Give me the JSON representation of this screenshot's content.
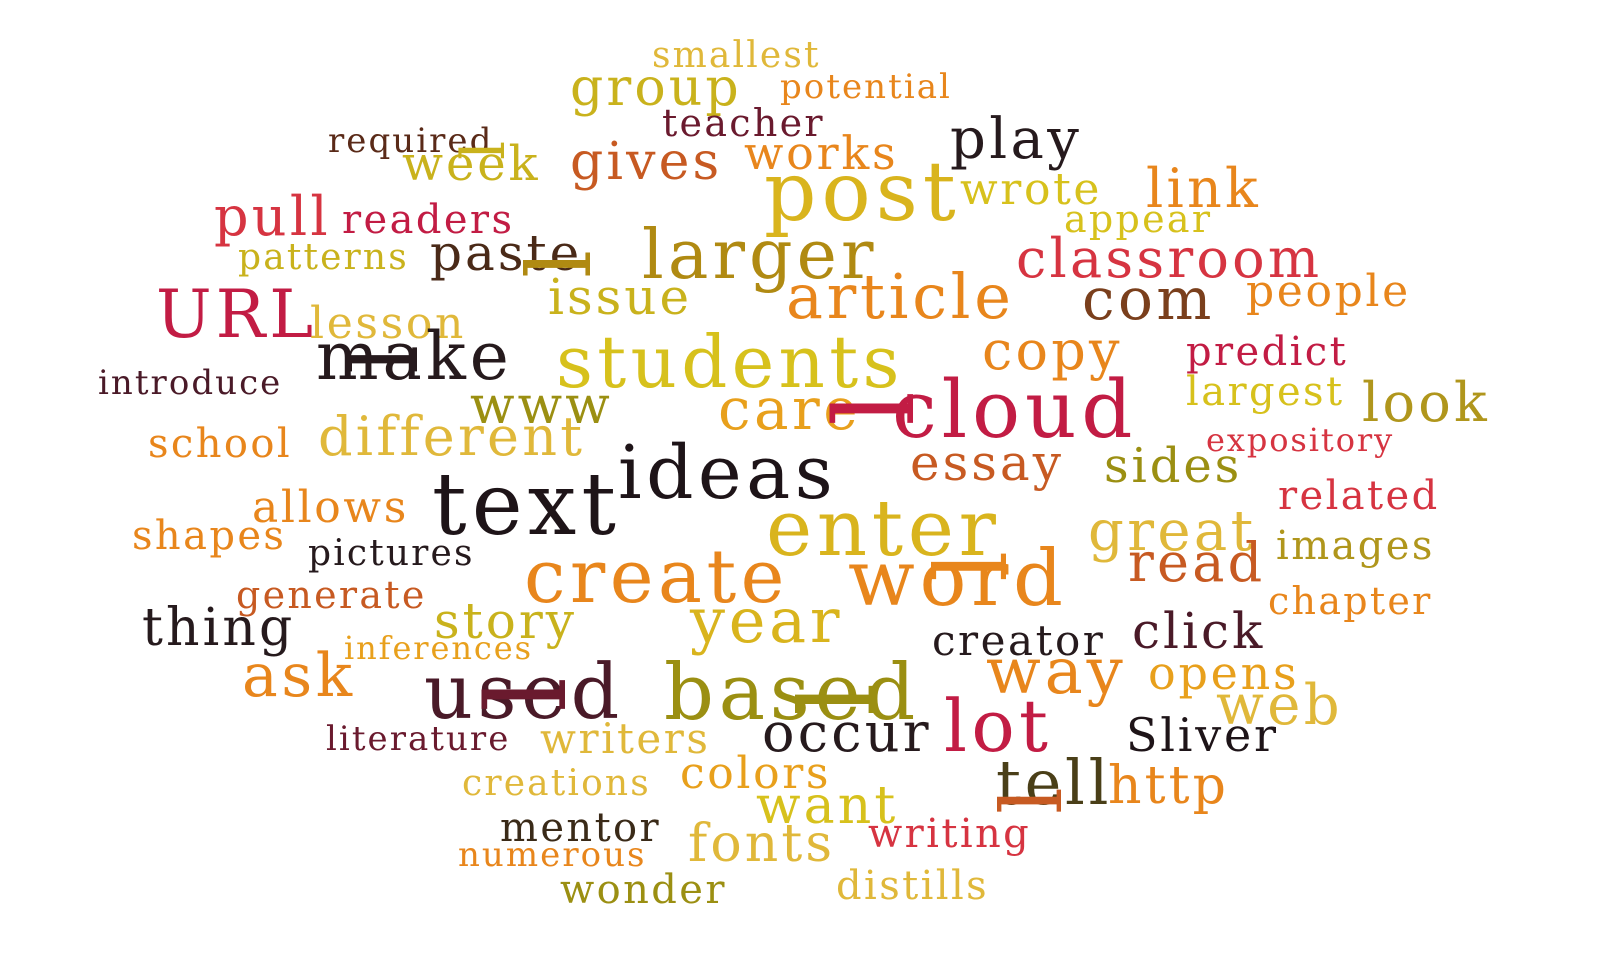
{
  "cloud": {
    "palette": {
      "gold": "#d9a41d",
      "olive": "#9b8f12",
      "yellow": "#d7c11c",
      "orange": "#e8861c",
      "rust": "#c75a22",
      "red": "#d63441",
      "crimson": "#c21c44",
      "maroon": "#6a1a2e",
      "brown": "#7a3f1c",
      "dark": "#261a1d",
      "darkolive": "#4a3f18"
    },
    "words": [
      {
        "text": "smallest",
        "color": "#e0b83a"
      },
      {
        "text": "group",
        "color": "#c9b21c"
      },
      {
        "text": "potential",
        "color": "#e8861c"
      },
      {
        "text": "teacher",
        "color": "#6a1a2e"
      },
      {
        "text": "play",
        "color": "#261a1d"
      },
      {
        "text": "required",
        "color": "#5a2a18"
      },
      {
        "text": "week",
        "color": "#c9b21c"
      },
      {
        "text": "gives",
        "color": "#c75a22"
      },
      {
        "text": "works",
        "color": "#e8861c"
      },
      {
        "text": "post",
        "color": "#d9b41d"
      },
      {
        "text": "wrote",
        "color": "#d7c11c"
      },
      {
        "text": "link",
        "color": "#e8861c"
      },
      {
        "text": "pull",
        "color": "#d63441"
      },
      {
        "text": "readers",
        "color": "#c21c44"
      },
      {
        "text": "appear",
        "color": "#d7c11c"
      },
      {
        "text": "patterns",
        "color": "#c9b21c"
      },
      {
        "text": "paste",
        "color": "#4a2a18"
      },
      {
        "text": "larger",
        "color": "#b08a12"
      },
      {
        "text": "classroom",
        "color": "#d63441"
      },
      {
        "text": "URL",
        "color": "#c21c44"
      },
      {
        "text": "issue",
        "color": "#c9b21c"
      },
      {
        "text": "article",
        "color": "#e8861c"
      },
      {
        "text": "com",
        "color": "#7a3f1c"
      },
      {
        "text": "people",
        "color": "#e8861c"
      },
      {
        "text": "lesson",
        "color": "#e0b83a"
      },
      {
        "text": "make",
        "color": "#261a1d"
      },
      {
        "text": "students",
        "color": "#d7c11c"
      },
      {
        "text": "copy",
        "color": "#e8861c"
      },
      {
        "text": "predict",
        "color": "#c21c44"
      },
      {
        "text": "introduce",
        "color": "#4a1a28"
      },
      {
        "text": "www",
        "color": "#9b8f12"
      },
      {
        "text": "care",
        "color": "#e8a01c"
      },
      {
        "text": "cloud",
        "color": "#c21c44"
      },
      {
        "text": "largest",
        "color": "#d7c11c"
      },
      {
        "text": "look",
        "color": "#b0961c"
      },
      {
        "text": "school",
        "color": "#e8861c"
      },
      {
        "text": "different",
        "color": "#e0b83a"
      },
      {
        "text": "expository",
        "color": "#d63441"
      },
      {
        "text": "ideas",
        "color": "#1e1418"
      },
      {
        "text": "essay",
        "color": "#c75a22"
      },
      {
        "text": "sides",
        "color": "#9b8f12"
      },
      {
        "text": "allows",
        "color": "#e8861c"
      },
      {
        "text": "text",
        "color": "#1e1418"
      },
      {
        "text": "related",
        "color": "#d63441"
      },
      {
        "text": "shapes",
        "color": "#e8861c"
      },
      {
        "text": "enter",
        "color": "#d9b41d"
      },
      {
        "text": "great",
        "color": "#e0b83a"
      },
      {
        "text": "pictures",
        "color": "#261a1d"
      },
      {
        "text": "images",
        "color": "#b0961c"
      },
      {
        "text": "create",
        "color": "#e8861c"
      },
      {
        "text": "word",
        "color": "#e8861c"
      },
      {
        "text": "read",
        "color": "#c75a22"
      },
      {
        "text": "generate",
        "color": "#c75a22"
      },
      {
        "text": "chapter",
        "color": "#e8861c"
      },
      {
        "text": "thing",
        "color": "#261a1d"
      },
      {
        "text": "story",
        "color": "#c9b21c"
      },
      {
        "text": "year",
        "color": "#d9b41d"
      },
      {
        "text": "creator",
        "color": "#261a1d"
      },
      {
        "text": "click",
        "color": "#4a1a28"
      },
      {
        "text": "inferences",
        "color": "#e8a01c"
      },
      {
        "text": "ask",
        "color": "#e8861c"
      },
      {
        "text": "used",
        "color": "#4a1a28"
      },
      {
        "text": "based",
        "color": "#9b8f12"
      },
      {
        "text": "way",
        "color": "#e8861c"
      },
      {
        "text": "opens",
        "color": "#e8a01c"
      },
      {
        "text": "web",
        "color": "#e0b83a"
      },
      {
        "text": "literature",
        "color": "#6a1a2e"
      },
      {
        "text": "writers",
        "color": "#e0b83a"
      },
      {
        "text": "occur",
        "color": "#261a1d"
      },
      {
        "text": "lot",
        "color": "#c21c44"
      },
      {
        "text": "Sliver",
        "color": "#1e1418"
      },
      {
        "text": "colors",
        "color": "#e8a01c"
      },
      {
        "text": "creations",
        "color": "#e0b83a"
      },
      {
        "text": "tell",
        "color": "#4a3f18"
      },
      {
        "text": "http",
        "color": "#e8861c"
      },
      {
        "text": "want",
        "color": "#d7c11c"
      },
      {
        "text": "mentor",
        "color": "#3a2a18"
      },
      {
        "text": "fonts",
        "color": "#e0b83a"
      },
      {
        "text": "writing",
        "color": "#d63441"
      },
      {
        "text": "numerous",
        "color": "#e8861c"
      },
      {
        "text": "distills",
        "color": "#e0b83a"
      },
      {
        "text": "wonder",
        "color": "#9b8f12"
      }
    ],
    "verticals": [
      {
        "text": "l",
        "color": "#c9b21c"
      },
      {
        "text": "l",
        "color": "#b08a12"
      },
      {
        "text": "l",
        "color": "#c21c44"
      },
      {
        "text": "l",
        "color": "#e8861c"
      },
      {
        "text": "l",
        "color": "#6a1a2e"
      },
      {
        "text": "l",
        "color": "#9b8f12"
      },
      {
        "text": "l",
        "color": "#261a1d"
      },
      {
        "text": "l",
        "color": "#c75a22"
      }
    ]
  }
}
